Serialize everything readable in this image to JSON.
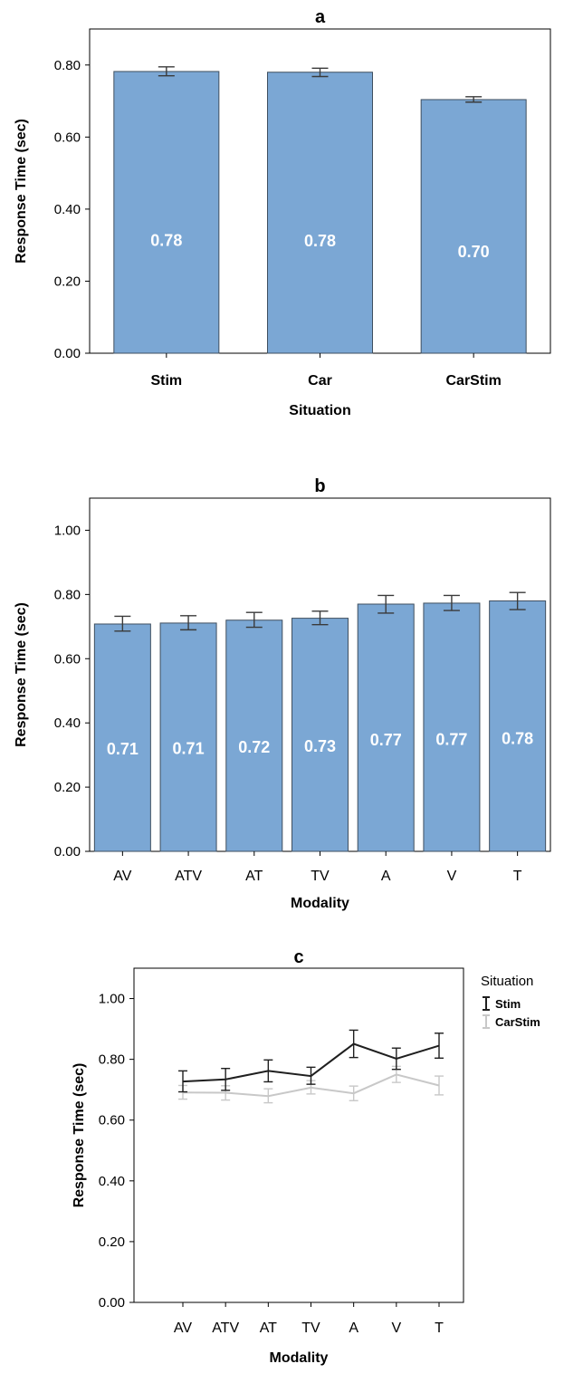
{
  "chart_data": [
    {
      "type": "bar",
      "title": "a",
      "xlabel": "Situation",
      "ylabel": "Response Time (sec)",
      "ylim": [
        0,
        0.9
      ],
      "yticks": [
        "0.00",
        "0.20",
        "0.40",
        "0.60",
        "0.80"
      ],
      "categories": [
        "Stim",
        "Car",
        "CarStim"
      ],
      "values": [
        0.782,
        0.78,
        0.704
      ],
      "error_low": [
        0.77,
        0.768,
        0.697
      ],
      "error_high": [
        0.795,
        0.791,
        0.712
      ],
      "data_labels": [
        "0.78",
        "0.78",
        "0.70"
      ],
      "bar_color": "#7ba7d4",
      "grid": false
    },
    {
      "type": "bar",
      "title": "b",
      "xlabel": "Modality",
      "ylabel": "Response Time (sec)",
      "ylim": [
        0,
        1.1
      ],
      "yticks": [
        "0.00",
        "0.20",
        "0.40",
        "0.60",
        "0.80",
        "1.00"
      ],
      "categories": [
        "AV",
        "ATV",
        "AT",
        "TV",
        "A",
        "V",
        "T"
      ],
      "values": [
        0.708,
        0.711,
        0.72,
        0.726,
        0.77,
        0.773,
        0.78
      ],
      "error_low": [
        0.686,
        0.69,
        0.698,
        0.706,
        0.742,
        0.75,
        0.753
      ],
      "error_high": [
        0.732,
        0.734,
        0.744,
        0.748,
        0.797,
        0.797,
        0.806
      ],
      "data_labels": [
        "0.71",
        "0.71",
        "0.72",
        "0.73",
        "0.77",
        "0.77",
        "0.78"
      ],
      "bar_color": "#7ba7d4",
      "grid": false
    },
    {
      "type": "line",
      "title": "c",
      "xlabel": "Modality",
      "ylabel": "Response Time (sec)",
      "ylim": [
        0,
        1.1
      ],
      "yticks": [
        "0.00",
        "0.20",
        "0.40",
        "0.60",
        "0.80",
        "1.00"
      ],
      "categories": [
        "AV",
        "ATV",
        "AT",
        "TV",
        "A",
        "V",
        "T"
      ],
      "legend_title": "Situation",
      "legend_position": "top-right outside",
      "series": [
        {
          "name": "Stim",
          "color": "#1f1f1f",
          "values": [
            0.727,
            0.734,
            0.762,
            0.745,
            0.851,
            0.802,
            0.845
          ],
          "error_low": [
            0.693,
            0.698,
            0.726,
            0.718,
            0.806,
            0.767,
            0.804
          ],
          "error_high": [
            0.762,
            0.77,
            0.798,
            0.774,
            0.896,
            0.837,
            0.886
          ]
        },
        {
          "name": "CarStim",
          "color": "#c8c8c8",
          "values": [
            0.691,
            0.69,
            0.679,
            0.707,
            0.688,
            0.75,
            0.714
          ],
          "error_low": [
            0.669,
            0.666,
            0.657,
            0.686,
            0.664,
            0.724,
            0.683
          ],
          "error_high": [
            0.714,
            0.713,
            0.703,
            0.73,
            0.712,
            0.777,
            0.745
          ]
        }
      ],
      "grid": false
    }
  ]
}
